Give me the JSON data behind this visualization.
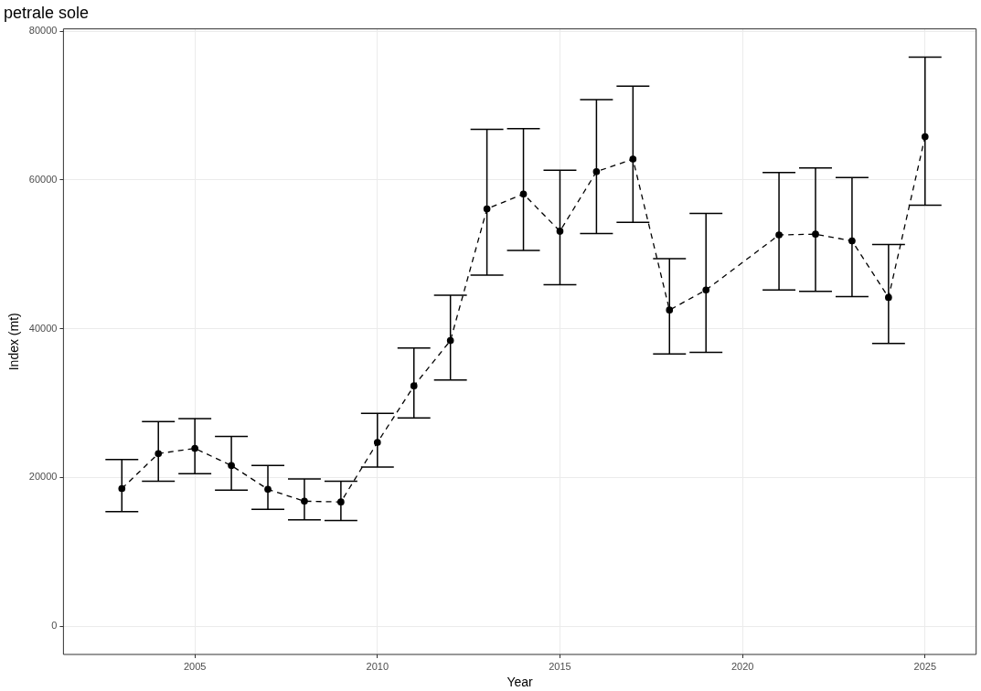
{
  "chart_data": {
    "type": "line",
    "title": "petrale sole",
    "xlabel": "Year",
    "ylabel": "Index (mt)",
    "x": [
      2003,
      2004,
      2005,
      2006,
      2007,
      2008,
      2009,
      2010,
      2011,
      2012,
      2013,
      2014,
      2015,
      2016,
      2017,
      2018,
      2019,
      2021,
      2022,
      2023,
      2024,
      2025
    ],
    "series": [
      {
        "color": "#000000",
        "values": [
          18500,
          23200,
          23900,
          21600,
          18400,
          16800,
          16700,
          24700,
          32300,
          38400,
          56100,
          58100,
          53100,
          61100,
          62800,
          42500,
          45200,
          52600,
          52700,
          51800,
          44200,
          65800
        ],
        "errors": [
          [
            15400,
            22400
          ],
          [
            19500,
            27500
          ],
          [
            20500,
            27900
          ],
          [
            18300,
            25500
          ],
          [
            15700,
            21600
          ],
          [
            14300,
            19800
          ],
          [
            14200,
            19500
          ],
          [
            21400,
            28600
          ],
          [
            28000,
            37400
          ],
          [
            33100,
            44500
          ],
          [
            47200,
            66800
          ],
          [
            50500,
            66900
          ],
          [
            45900,
            61300
          ],
          [
            52800,
            70800
          ],
          [
            54300,
            72600
          ],
          [
            36600,
            49400
          ],
          [
            36800,
            55500
          ],
          [
            45200,
            61000
          ],
          [
            45000,
            61600
          ],
          [
            44300,
            60300
          ],
          [
            38000,
            51300
          ],
          [
            56600,
            76500
          ]
        ]
      }
    ],
    "xlim": [
      2001.4,
      2026.4
    ],
    "xticks": [
      2005,
      2010,
      2015,
      2020,
      2025
    ],
    "ylim": [
      -3800,
      80300
    ],
    "yticks": [
      0,
      20000,
      40000,
      60000,
      80000
    ],
    "grid": true,
    "legend": false,
    "marker": "circle",
    "line_style": "dashed"
  }
}
